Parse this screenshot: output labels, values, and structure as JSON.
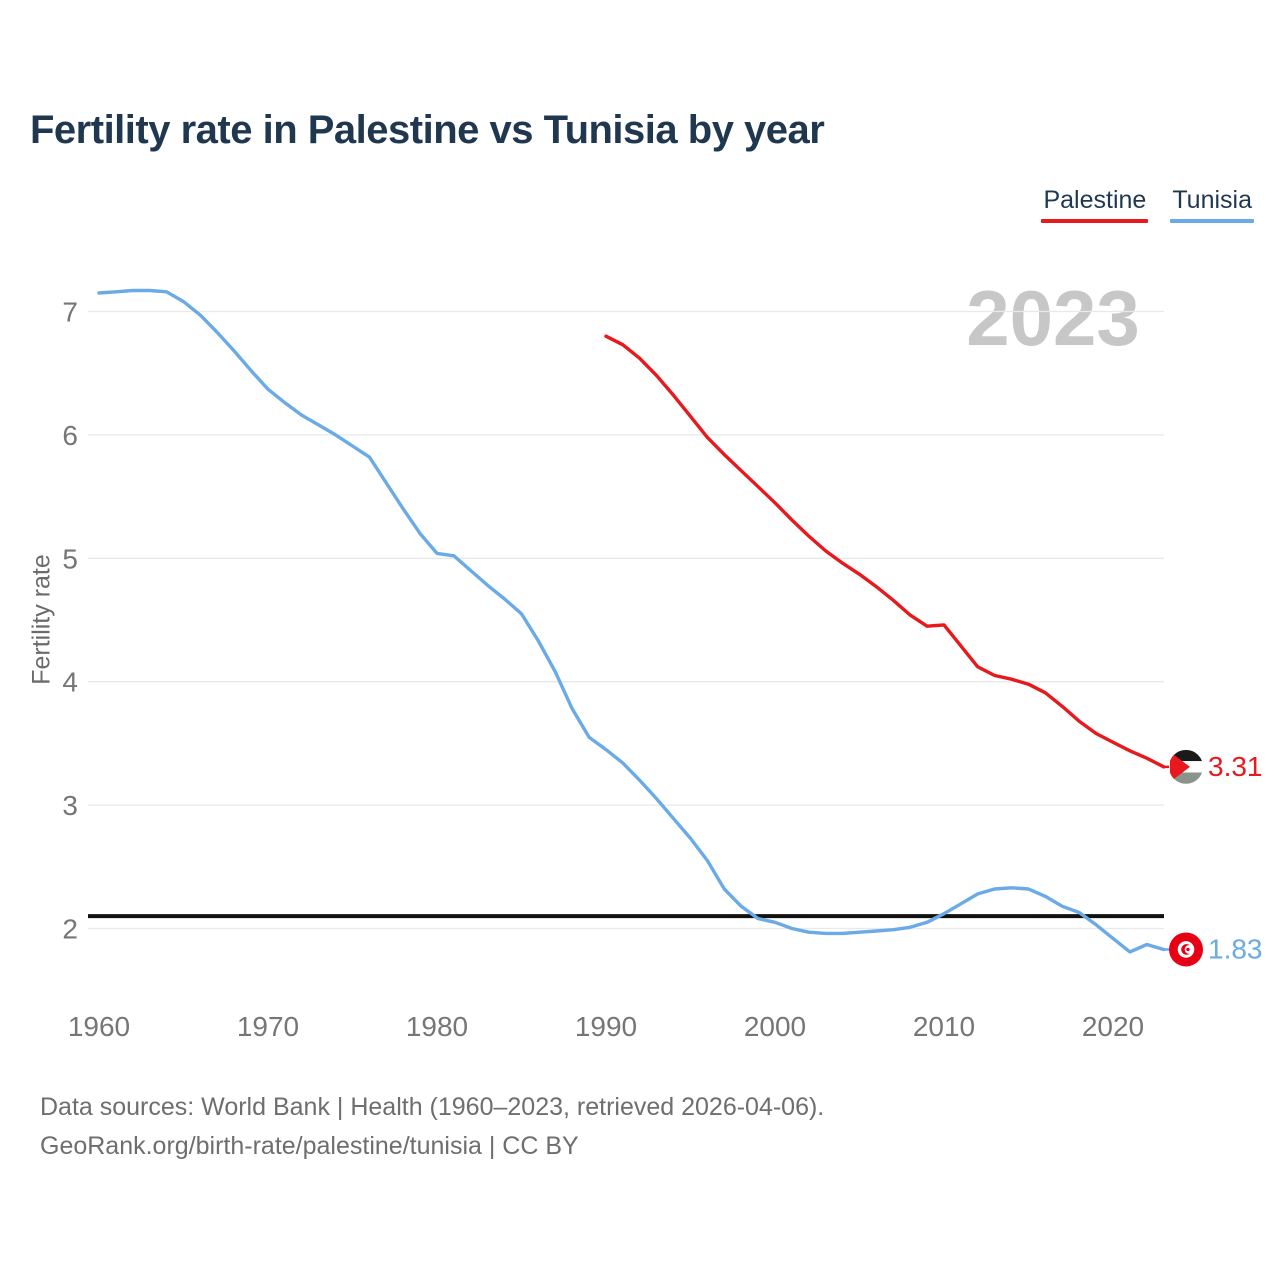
{
  "page": {
    "title": "Fertility rate in Palestine vs Tunisia by year",
    "watermark": "2023",
    "ylabel": "Fertility rate",
    "footer_line1": "Data sources: World Bank | Health (1960–2023, retrieved 2026-04-06).",
    "footer_line2": "GeoRank.org/birth-rate/palestine/tunisia | CC BY"
  },
  "colors": {
    "palestine": "#e8191c",
    "tunisia": "#6aaae6",
    "title_text": "#1f3850",
    "axis_text": "#767676",
    "gridline": "#e9e9e9",
    "watermark": "#c7c7c7",
    "replacement_line": "#111111"
  },
  "chart_data": {
    "type": "line",
    "title": "Fertility rate in Palestine vs Tunisia by year",
    "xlabel": "",
    "ylabel": "Fertility rate",
    "x_ticks": [
      1960,
      1970,
      1980,
      1990,
      2000,
      2010,
      2020
    ],
    "y_ticks": [
      2,
      3,
      4,
      5,
      6,
      7
    ],
    "xlim": [
      1959.4,
      2024.2
    ],
    "ylim": [
      1.55,
      7.4
    ],
    "grid": "horizontal",
    "legend_position": "top-right",
    "annotations": {
      "hline_value": 2.1,
      "watermark": "2023"
    },
    "series": [
      {
        "name": "Tunisia",
        "color": "#6aaae6",
        "marker_icon": "tunisia-flag-icon",
        "start_year": 1960,
        "end_year": 2023,
        "end_label": "1.83",
        "values": [
          7.15,
          7.16,
          7.17,
          7.17,
          7.16,
          7.08,
          6.97,
          6.83,
          6.68,
          6.52,
          6.37,
          6.26,
          6.16,
          6.08,
          6.0,
          5.91,
          5.82,
          5.61,
          5.4,
          5.2,
          5.04,
          5.02,
          4.9,
          4.78,
          4.67,
          4.55,
          4.33,
          4.08,
          3.78,
          3.55,
          3.45,
          3.34,
          3.2,
          3.05,
          2.89,
          2.73,
          2.55,
          2.32,
          2.18,
          2.08,
          2.05,
          2.0,
          1.97,
          1.96,
          1.96,
          1.97,
          1.98,
          1.99,
          2.01,
          2.05,
          2.12,
          2.2,
          2.28,
          2.32,
          2.33,
          2.32,
          2.26,
          2.18,
          2.13,
          2.03,
          1.92,
          1.81,
          1.87,
          1.83
        ]
      },
      {
        "name": "Palestine",
        "color": "#e8191c",
        "marker_icon": "palestine-flag-icon",
        "start_year": 1990,
        "end_year": 2023,
        "end_label": "3.31",
        "values": [
          6.8,
          6.73,
          6.62,
          6.48,
          6.32,
          6.15,
          5.98,
          5.84,
          5.71,
          5.58,
          5.45,
          5.31,
          5.18,
          5.06,
          4.96,
          4.87,
          4.77,
          4.66,
          4.54,
          4.45,
          4.46,
          4.29,
          4.12,
          4.05,
          4.02,
          3.98,
          3.91,
          3.8,
          3.68,
          3.58,
          3.51,
          3.44,
          3.38,
          3.31
        ]
      }
    ]
  }
}
